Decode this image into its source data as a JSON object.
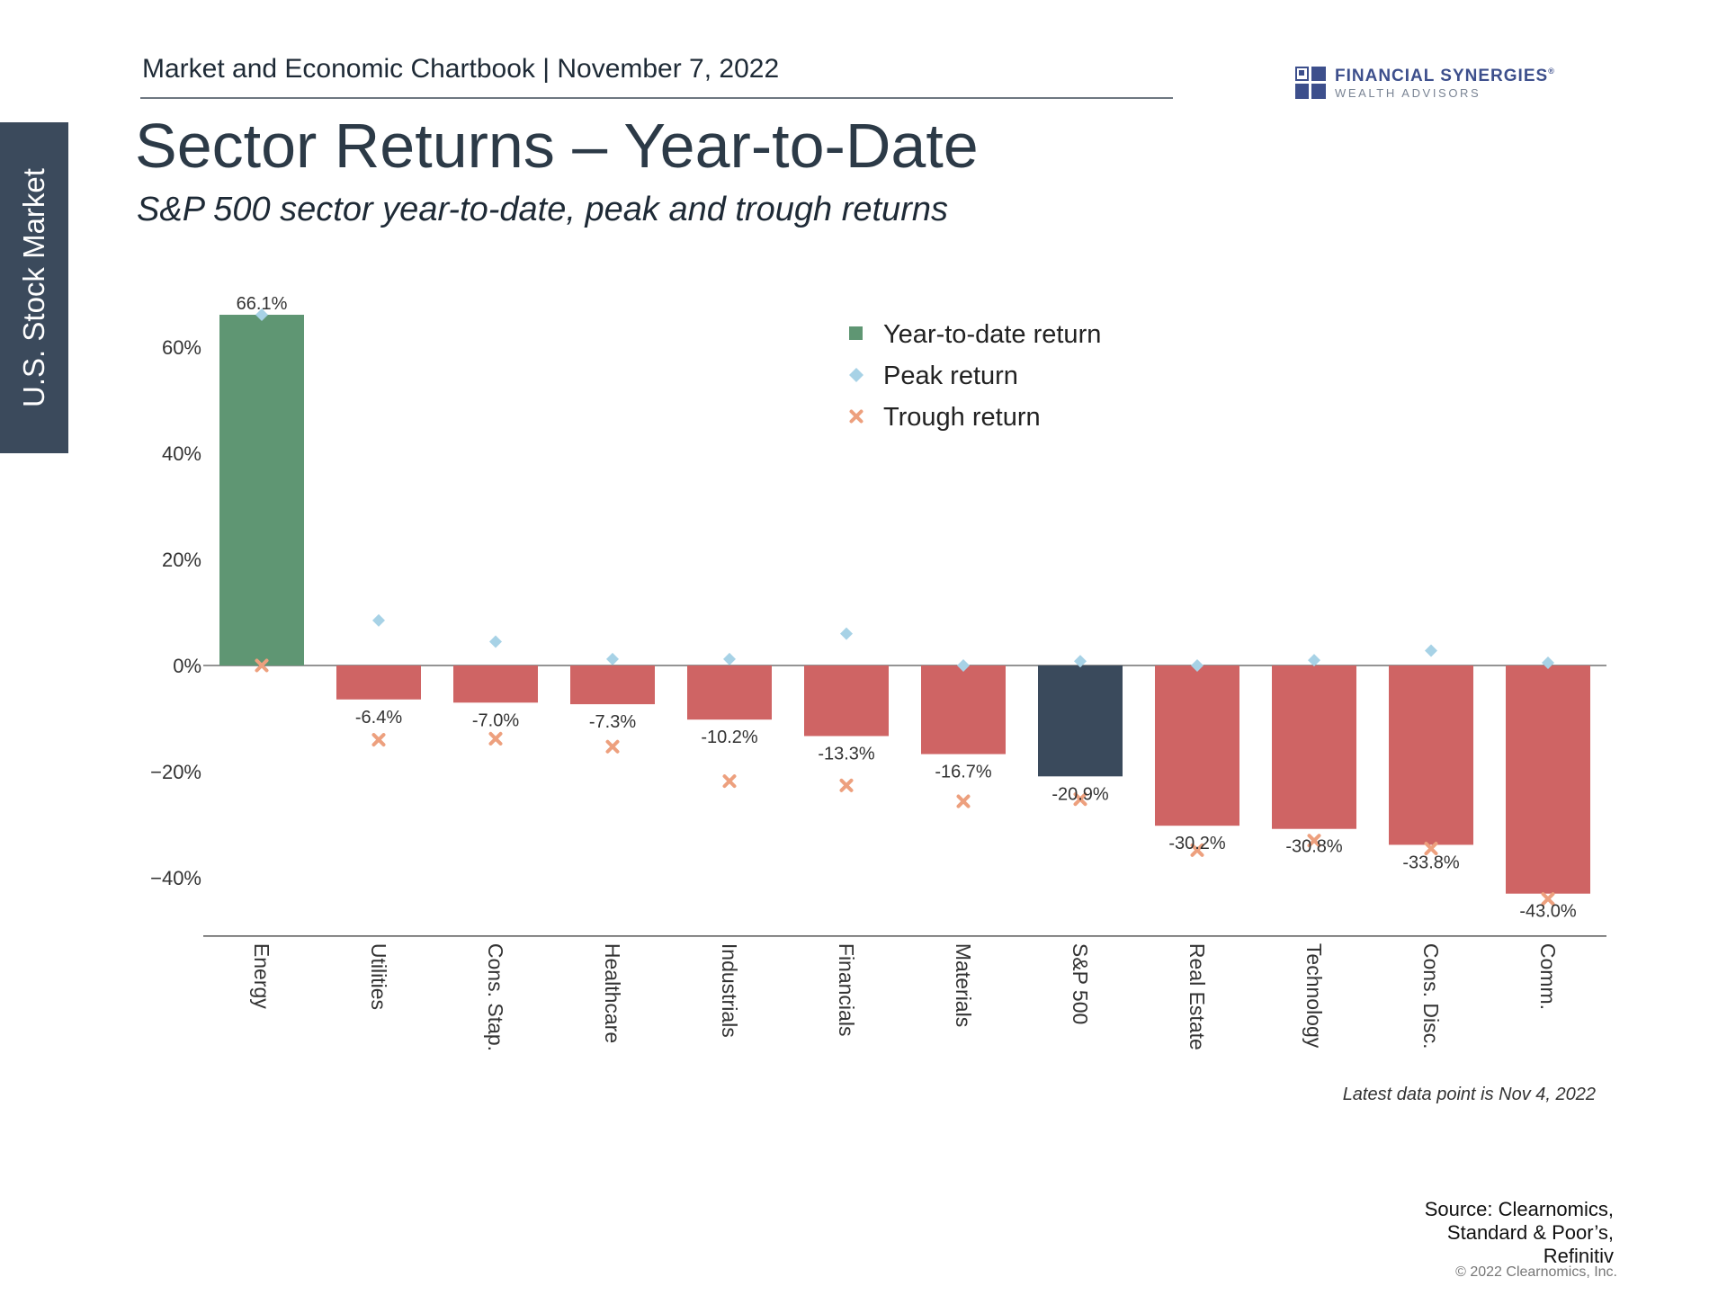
{
  "side_tab": {
    "label": "U.S. Stock Market"
  },
  "header": {
    "text": "Market and Economic Chartbook | November 7, 2022"
  },
  "logo": {
    "name": "FINANCIAL SYNERGIES",
    "mark": "®",
    "sub": "WEALTH ADVISORS",
    "icon": "flag-squares-logo-icon",
    "color": "#3d4f8c"
  },
  "title": "Sector Returns – Year-to-Date",
  "subtitle": "S&P 500 sector year-to-date, peak and trough returns",
  "footer": {
    "note": "Latest data point is Nov 4, 2022",
    "source_lines": [
      "Source: Clearnomics,",
      "Standard & Poor’s,",
      "Refinitiv"
    ],
    "copyright": "© 2022 Clearnomics, Inc."
  },
  "chart_data": {
    "type": "bar",
    "categories": [
      "Energy",
      "Utilities",
      "Cons. Stap.",
      "Healthcare",
      "Industrials",
      "Financials",
      "Materials",
      "S&P 500",
      "Real Estate",
      "Technology",
      "Cons. Disc.",
      "Comm."
    ],
    "series": [
      {
        "name": "Year-to-date return",
        "kind": "bar",
        "values": [
          66.1,
          -6.4,
          -7.0,
          -7.3,
          -10.2,
          -13.3,
          -16.7,
          -20.9,
          -30.2,
          -30.8,
          -33.8,
          -43.0
        ]
      },
      {
        "name": "Peak return",
        "kind": "marker",
        "marker": "diamond",
        "values": [
          66.1,
          8.5,
          4.5,
          1.2,
          1.2,
          6.0,
          0.0,
          0.8,
          0.0,
          1.0,
          2.8,
          0.5
        ]
      },
      {
        "name": "Trough return",
        "kind": "marker",
        "marker": "x",
        "values": [
          0.0,
          -14.0,
          -13.8,
          -15.3,
          -21.8,
          -22.6,
          -25.6,
          -25.2,
          -34.8,
          -33.0,
          -34.5,
          -44.0
        ]
      }
    ],
    "data_labels": [
      "66.1%",
      "-6.4%",
      "-7.0%",
      "-7.3%",
      "-10.2%",
      "-13.3%",
      "-16.7%",
      "-20.9%",
      "-30.2%",
      "-30.8%",
      "-33.8%",
      "-43.0%"
    ],
    "y_ticks": [
      60,
      40,
      20,
      0,
      -20,
      -40
    ],
    "y_tick_labels": [
      "60%",
      "40%",
      "20%",
      "0%",
      "−20%",
      "−40%"
    ],
    "ylim": [
      -51,
      71
    ],
    "legend_position": "top-center",
    "grid": false,
    "colors": {
      "positive": "#5f9673",
      "negative": "#cf6464",
      "index": "#3a4a5c",
      "peak": "#a7d2e6",
      "trough": "#eda07e"
    },
    "highlight_category": "S&P 500"
  }
}
